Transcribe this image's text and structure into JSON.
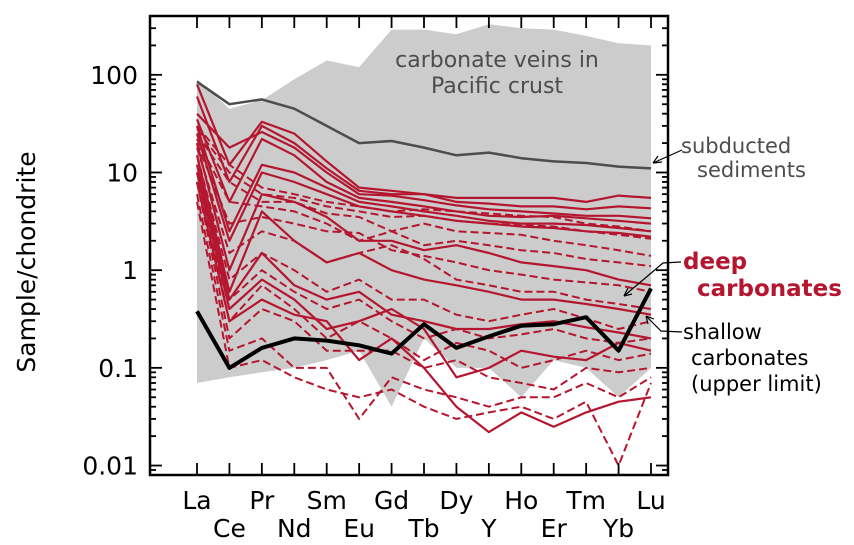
{
  "chart_data": {
    "type": "line",
    "ylabel": "Sample/chondrite",
    "yscale": "log",
    "ylim": [
      0.008,
      400
    ],
    "yticks": [
      0.01,
      0.1,
      1,
      10,
      100
    ],
    "ytick_labels": [
      "0.01",
      "0.1",
      "1",
      "10",
      "100"
    ],
    "categories": [
      "La",
      "Ce",
      "Pr",
      "Nd",
      "Sm",
      "Eu",
      "Gd",
      "Tb",
      "Dy",
      "Y",
      "Ho",
      "Er",
      "Tm",
      "Yb",
      "Lu"
    ],
    "colors": {
      "deep": "#b5162f",
      "subducted": "#4d4d4d",
      "shallow": "#000000",
      "veins_fill": "#cccccc",
      "veins_text": "#4d4d4d"
    },
    "annotations": {
      "veins": [
        "carbonate veins in",
        "Pacific crust"
      ],
      "subducted": [
        "subducted",
        "sediments"
      ],
      "deep": [
        "deep",
        "carbonates"
      ],
      "shallow": [
        "shallow",
        "carbonates",
        "(upper limit)"
      ]
    },
    "veins_range": {
      "upper": [
        90,
        45,
        55,
        90,
        140,
        120,
        290,
        290,
        260,
        330,
        300,
        290,
        250,
        210,
        200
      ],
      "lower": [
        0.07,
        0.08,
        0.09,
        0.1,
        0.12,
        0.15,
        0.04,
        0.2,
        0.1,
        0.1,
        0.05,
        0.12,
        0.1,
        0.05,
        0.1
      ]
    },
    "subducted_sediments": [
      85,
      50,
      56,
      45,
      30,
      20,
      21,
      18,
      15,
      16,
      14,
      13,
      12.5,
      11.5,
      11
    ],
    "shallow_carbonates": [
      0.38,
      0.1,
      0.16,
      0.2,
      0.19,
      0.17,
      0.14,
      0.28,
      0.16,
      0.21,
      0.27,
      0.28,
      0.33,
      0.15,
      0.65
    ],
    "deep_solid": [
      [
        80,
        12,
        33,
        25,
        13,
        7,
        6.5,
        6,
        5.5,
        5.5,
        5.5,
        5.5,
        5,
        5.8,
        5.5
      ],
      [
        60,
        8,
        30,
        20,
        11,
        6.5,
        6,
        6,
        5,
        4.8,
        4.5,
        4.5,
        4.2,
        4.5,
        4.3
      ],
      [
        40,
        18,
        26,
        18,
        10,
        6,
        5.8,
        5.2,
        4.6,
        4.2,
        4,
        3.8,
        3.6,
        3.6,
        3.4
      ],
      [
        35,
        5,
        22,
        15,
        8,
        5.5,
        5,
        4.5,
        4,
        3.6,
        3.5,
        3.6,
        3.4,
        3.2,
        3
      ],
      [
        30,
        2.5,
        12,
        10,
        7,
        5,
        4.5,
        4,
        3.6,
        3.2,
        3,
        3,
        2.9,
        2.7,
        2.5
      ],
      [
        25,
        2,
        10,
        8,
        6,
        4.5,
        4,
        3.6,
        3.2,
        3,
        2.8,
        2.7,
        2.5,
        2.4,
        2.2
      ],
      [
        20,
        1,
        6,
        5,
        3.5,
        2,
        2,
        1.6,
        1.8,
        1.5,
        1.2,
        1.1,
        1,
        0.8,
        0.7
      ],
      [
        15,
        0.6,
        4,
        2,
        1.2,
        1.5,
        1,
        0.8,
        0.7,
        0.6,
        0.5,
        0.5,
        0.45,
        0.4,
        0.35
      ],
      [
        12,
        0.5,
        1.5,
        0.7,
        0.5,
        0.6,
        0.35,
        0.3,
        0.25,
        0.25,
        0.28,
        0.3,
        0.26,
        0.23,
        0.2
      ],
      [
        10,
        0.4,
        0.8,
        0.5,
        0.25,
        0.3,
        0.4,
        0.25,
        0.08,
        0.1,
        0.15,
        0.13,
        0.12,
        0.18,
        0.15
      ],
      [
        8,
        0.3,
        0.5,
        0.35,
        0.3,
        0.12,
        0.2,
        0.1,
        0.04,
        0.022,
        0.035,
        0.025,
        0.035,
        0.045,
        0.05
      ]
    ],
    "deep_dashed": [
      [
        30,
        12,
        7,
        6,
        5,
        4.5,
        4,
        4.2,
        4,
        3.8,
        3.6,
        3.5,
        3,
        2.8,
        2.5
      ],
      [
        28,
        10,
        6,
        5.5,
        4.5,
        4,
        3.5,
        3.6,
        3.2,
        3,
        2.9,
        2.8,
        2.5,
        2.3,
        2.1
      ],
      [
        25,
        8,
        5,
        5,
        3.8,
        3.5,
        2.5,
        3,
        2.5,
        2.4,
        2.3,
        2,
        1.8,
        1.6,
        1.4
      ],
      [
        22,
        5,
        4.5,
        4,
        3,
        2,
        2.5,
        1.8,
        2,
        1.8,
        1.6,
        1.5,
        1.3,
        1.2,
        1.1
      ],
      [
        20,
        3,
        3.5,
        3,
        2.5,
        2.4,
        1.6,
        1.4,
        1.2,
        1,
        0.9,
        0.8,
        0.75,
        0.7,
        0.6
      ],
      [
        18,
        1.5,
        2.5,
        2,
        1.2,
        1.5,
        1.8,
        1.3,
        0.8,
        0.7,
        0.6,
        0.6,
        0.5,
        0.45,
        0.4
      ],
      [
        15,
        0.8,
        1.5,
        1,
        0.6,
        0.8,
        0.5,
        0.5,
        0.35,
        0.3,
        0.35,
        0.4,
        0.32,
        0.25,
        0.3
      ],
      [
        12,
        0.5,
        1,
        0.6,
        0.4,
        0.5,
        0.3,
        0.2,
        0.25,
        0.2,
        0.22,
        0.25,
        0.2,
        0.18,
        0.2
      ],
      [
        10,
        0.3,
        0.7,
        0.4,
        0.2,
        0.3,
        0.2,
        0.12,
        0.18,
        0.15,
        0.1,
        0.12,
        0.15,
        0.12,
        0.14
      ],
      [
        8,
        0.2,
        0.4,
        0.3,
        0.15,
        0.15,
        0.15,
        0.1,
        0.12,
        0.08,
        0.07,
        0.06,
        0.1,
        0.09,
        0.1
      ],
      [
        6,
        0.15,
        0.2,
        0.1,
        0.1,
        0.03,
        0.08,
        0.06,
        0.05,
        0.04,
        0.05,
        0.05,
        0.07,
        0.05,
        0.08
      ],
      [
        5,
        0.1,
        0.12,
        0.08,
        0.06,
        0.05,
        0.06,
        0.04,
        0.03,
        0.035,
        0.04,
        0.03,
        0.045,
        0.01,
        0.07
      ]
    ]
  }
}
